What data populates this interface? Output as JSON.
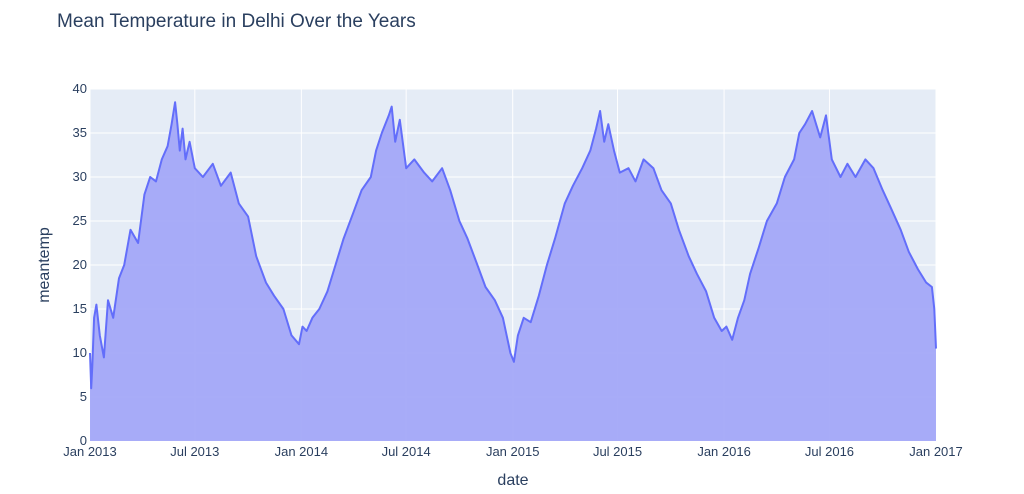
{
  "chart_data": {
    "type": "area",
    "title": "Mean Temperature in Delhi Over the Years",
    "xlabel": "date",
    "ylabel": "meantemp",
    "xlim": [
      "2013-01-01",
      "2017-01-01"
    ],
    "ylim": [
      0,
      40
    ],
    "grid": true,
    "legend": "none",
    "x_ticks": [
      "Jan 2013",
      "Jul 2013",
      "Jan 2014",
      "Jul 2014",
      "Jan 2015",
      "Jul 2015",
      "Jan 2016",
      "Jul 2016",
      "Jan 2017"
    ],
    "y_ticks": [
      0,
      5,
      10,
      15,
      20,
      25,
      30,
      35,
      40
    ],
    "series": [
      {
        "line_color": "#636efa",
        "fill_color": "#a3a8f8",
        "x": [
          "2013-01-01",
          "2013-01-03",
          "2013-01-05",
          "2013-01-08",
          "2013-01-12",
          "2013-01-18",
          "2013-01-25",
          "2013-02-01",
          "2013-02-10",
          "2013-02-20",
          "2013-03-01",
          "2013-03-12",
          "2013-03-25",
          "2013-04-05",
          "2013-04-15",
          "2013-04-25",
          "2013-05-05",
          "2013-05-15",
          "2013-05-22",
          "2013-05-28",
          "2013-06-01",
          "2013-06-05",
          "2013-06-10",
          "2013-06-15",
          "2013-06-22",
          "2013-07-01",
          "2013-07-15",
          "2013-08-01",
          "2013-08-15",
          "2013-09-01",
          "2013-09-15",
          "2013-10-01",
          "2013-10-15",
          "2013-11-01",
          "2013-11-15",
          "2013-12-01",
          "2013-12-15",
          "2013-12-28",
          "2014-01-03",
          "2014-01-10",
          "2014-01-20",
          "2014-02-01",
          "2014-02-15",
          "2014-03-01",
          "2014-03-15",
          "2014-04-01",
          "2014-04-15",
          "2014-05-01",
          "2014-05-10",
          "2014-05-20",
          "2014-06-01",
          "2014-06-06",
          "2014-06-12",
          "2014-06-20",
          "2014-07-01",
          "2014-07-15",
          "2014-08-01",
          "2014-08-15",
          "2014-09-01",
          "2014-09-15",
          "2014-10-01",
          "2014-10-15",
          "2014-11-01",
          "2014-11-15",
          "2014-12-01",
          "2014-12-15",
          "2014-12-28",
          "2015-01-03",
          "2015-01-10",
          "2015-01-20",
          "2015-02-01",
          "2015-02-15",
          "2015-03-01",
          "2015-03-15",
          "2015-04-01",
          "2015-04-15",
          "2015-05-01",
          "2015-05-15",
          "2015-05-25",
          "2015-06-01",
          "2015-06-08",
          "2015-06-15",
          "2015-06-25",
          "2015-07-05",
          "2015-07-20",
          "2015-08-01",
          "2015-08-15",
          "2015-09-01",
          "2015-09-15",
          "2015-10-01",
          "2015-10-15",
          "2015-11-01",
          "2015-11-15",
          "2015-12-01",
          "2015-12-15",
          "2015-12-28",
          "2016-01-05",
          "2016-01-15",
          "2016-01-25",
          "2016-02-05",
          "2016-02-15",
          "2016-03-01",
          "2016-03-15",
          "2016-04-01",
          "2016-04-15",
          "2016-05-01",
          "2016-05-10",
          "2016-05-20",
          "2016-06-01",
          "2016-06-08",
          "2016-06-15",
          "2016-06-25",
          "2016-07-05",
          "2016-07-20",
          "2016-08-01",
          "2016-08-15",
          "2016-09-01",
          "2016-09-15",
          "2016-10-01",
          "2016-10-15",
          "2016-11-01",
          "2016-11-15",
          "2016-12-01",
          "2016-12-15",
          "2016-12-25",
          "2016-12-29",
          "2017-01-01"
        ],
        "y": [
          10.0,
          6.0,
          8.5,
          14.0,
          15.5,
          12.0,
          9.5,
          16.0,
          14.0,
          18.5,
          20.0,
          24.0,
          22.5,
          28.0,
          30.0,
          29.5,
          32.0,
          33.5,
          36.0,
          38.5,
          36.0,
          33.0,
          35.5,
          32.0,
          34.0,
          31.0,
          30.0,
          31.5,
          29.0,
          30.5,
          27.0,
          25.5,
          21.0,
          18.0,
          16.5,
          15.0,
          12.0,
          11.0,
          13.0,
          12.5,
          14.0,
          15.0,
          17.0,
          20.0,
          23.0,
          26.0,
          28.5,
          30.0,
          33.0,
          35.0,
          37.0,
          38.0,
          34.0,
          36.5,
          31.0,
          32.0,
          30.5,
          29.5,
          31.0,
          28.5,
          25.0,
          23.0,
          20.0,
          17.5,
          16.0,
          14.0,
          10.0,
          9.0,
          12.0,
          14.0,
          13.5,
          16.5,
          20.0,
          23.0,
          27.0,
          29.0,
          31.0,
          33.0,
          35.5,
          37.5,
          34.0,
          36.0,
          33.0,
          30.5,
          31.0,
          29.5,
          32.0,
          31.0,
          28.5,
          27.0,
          24.0,
          21.0,
          19.0,
          17.0,
          14.0,
          12.5,
          13.0,
          11.5,
          14.0,
          16.0,
          19.0,
          22.0,
          25.0,
          27.0,
          30.0,
          32.0,
          35.0,
          36.0,
          37.5,
          36.0,
          34.5,
          37.0,
          32.0,
          30.0,
          31.5,
          30.0,
          32.0,
          31.0,
          28.5,
          26.5,
          24.0,
          21.5,
          19.5,
          18.0,
          17.5,
          15.0,
          10.5
        ]
      }
    ]
  }
}
